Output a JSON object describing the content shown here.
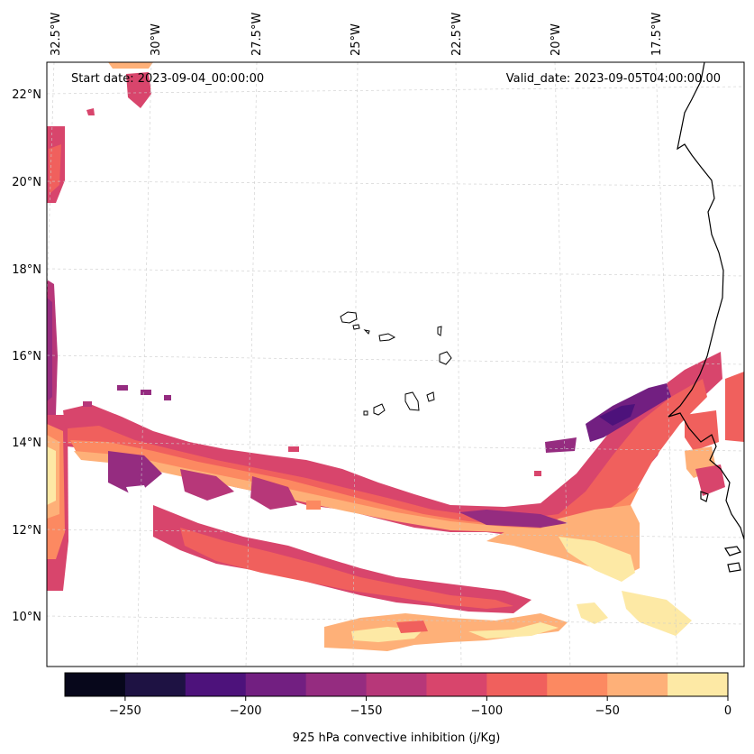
{
  "map": {
    "start_label": "Start date: 2023-09-04_00:00:00",
    "valid_label": "Valid_date: 2023-09-05T04:00:00.00",
    "lon_labels": [
      "32.5°W",
      "30°W",
      "27.5°W",
      "25°W",
      "22.5°W",
      "20°W",
      "17.5°W"
    ],
    "lat_labels": [
      "22°N",
      "20°N",
      "18°N",
      "16°N",
      "14°N",
      "12°N",
      "10°N"
    ],
    "grid_lines": true,
    "coastline_color": "#000000"
  },
  "colorbar": {
    "label": "925 hPa convective inhibition (j/Kg)",
    "tick_labels": [
      "−250",
      "−200",
      "−150",
      "−100",
      "−50",
      "0"
    ],
    "levels": [
      -275,
      -250,
      -225,
      -200,
      -175,
      -150,
      -125,
      -100,
      -75,
      -50,
      -25,
      0
    ],
    "colors": [
      "#07071b",
      "#1e1243",
      "#4d127b",
      "#721f81",
      "#952c80",
      "#b73779",
      "#d8456c",
      "#f0605d",
      "#fc8961",
      "#feb078",
      "#fde9a5"
    ]
  }
}
